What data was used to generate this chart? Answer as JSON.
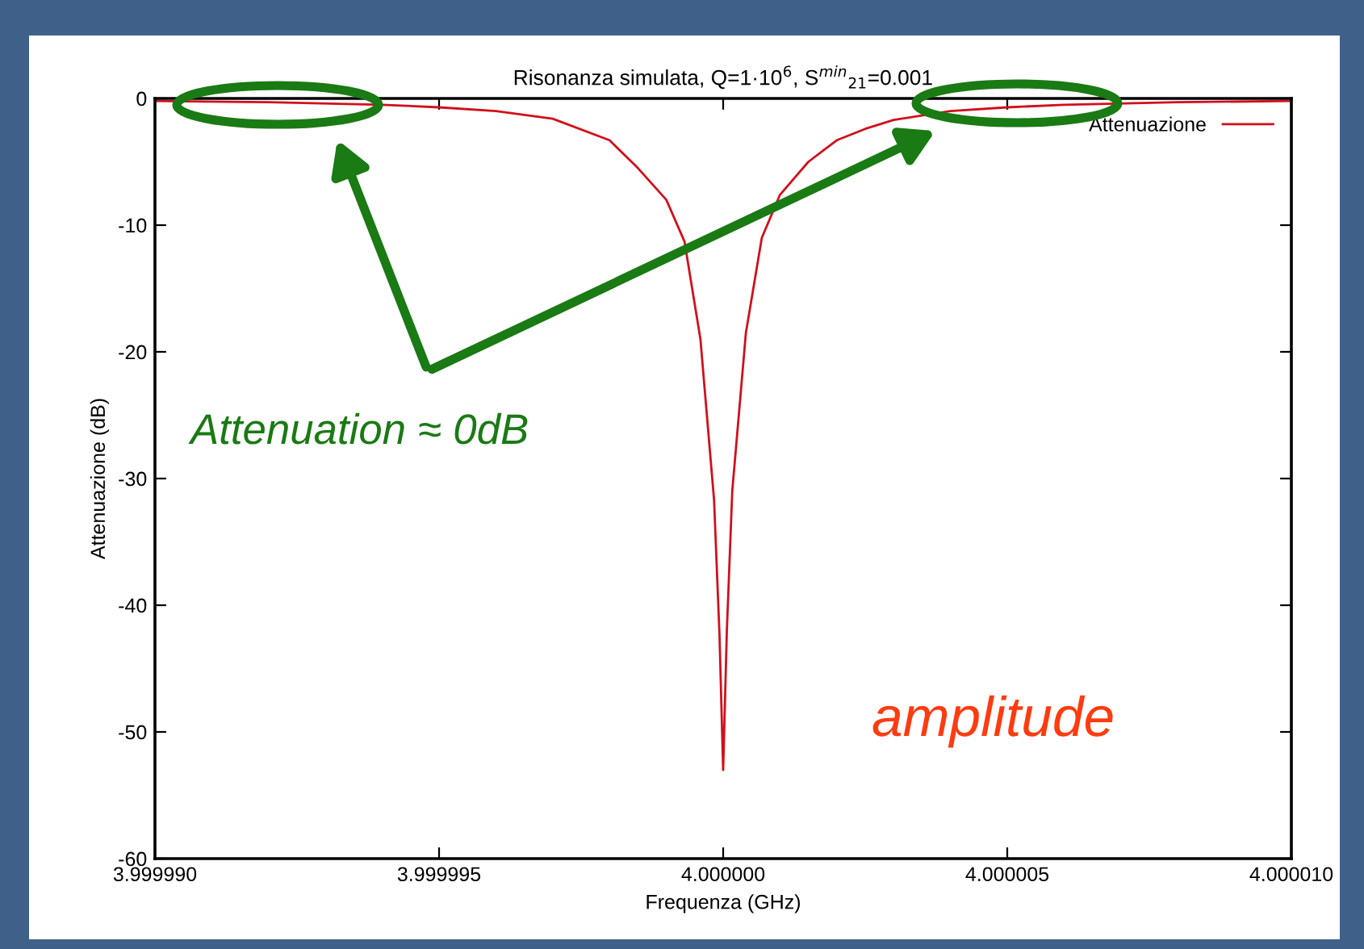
{
  "chart_data": {
    "type": "line",
    "title": "Risonanza simulata, Q=1·10$^{6}$, S$^{min}$$_{21}$=0.001",
    "xlabel": "Frequenza (GHz)",
    "ylabel": "Attenuazione (dB)",
    "x": [
      3.99999,
      3.999992,
      3.999994,
      3.999995,
      3.999996,
      3.999997,
      3.999998,
      3.9999985,
      3.999999,
      3.99999932,
      3.9999996,
      3.99999984,
      3.999999935,
      4.0,
      4.000000065,
      4.00000016,
      4.0000004,
      4.00000068,
      4.000001,
      4.0000015,
      4.000002,
      4.0000025,
      4.000003,
      4.000004,
      4.000005,
      4.000006,
      4.000008,
      4.00001
    ],
    "series": [
      {
        "name": "Attenuazione",
        "color": "#d0101c",
        "values": [
          -0.2,
          -0.3,
          -0.5,
          -0.7,
          -1.0,
          -1.6,
          -3.3,
          -5.5,
          -8,
          -11.3,
          -19,
          -31.7,
          -42.3,
          -53,
          -42,
          -31,
          -18.5,
          -11,
          -7.6,
          -5.0,
          -3.3,
          -2.4,
          -1.7,
          -1.0,
          -0.7,
          -0.5,
          -0.3,
          -0.2
        ]
      }
    ],
    "xlim": [
      3.99999,
      4.00001
    ],
    "xticks": [
      {
        "value": 3.99999,
        "label": "3.999990"
      },
      {
        "value": 3.999995,
        "label": "3.999995"
      },
      {
        "value": 4.0,
        "label": "4.000000"
      },
      {
        "value": 4.000005,
        "label": "4.000005"
      },
      {
        "value": 4.00001,
        "label": "4.000010"
      }
    ],
    "ylim": [
      -60,
      0
    ],
    "yticks": [
      -60,
      -50,
      -40,
      -30,
      -20,
      -10,
      0
    ],
    "grid": false,
    "legend": "top right",
    "marker": "none",
    "line_style": "solid",
    "annotations": [
      "Attenuation ≈ 0dB",
      "amplitude"
    ]
  }
}
